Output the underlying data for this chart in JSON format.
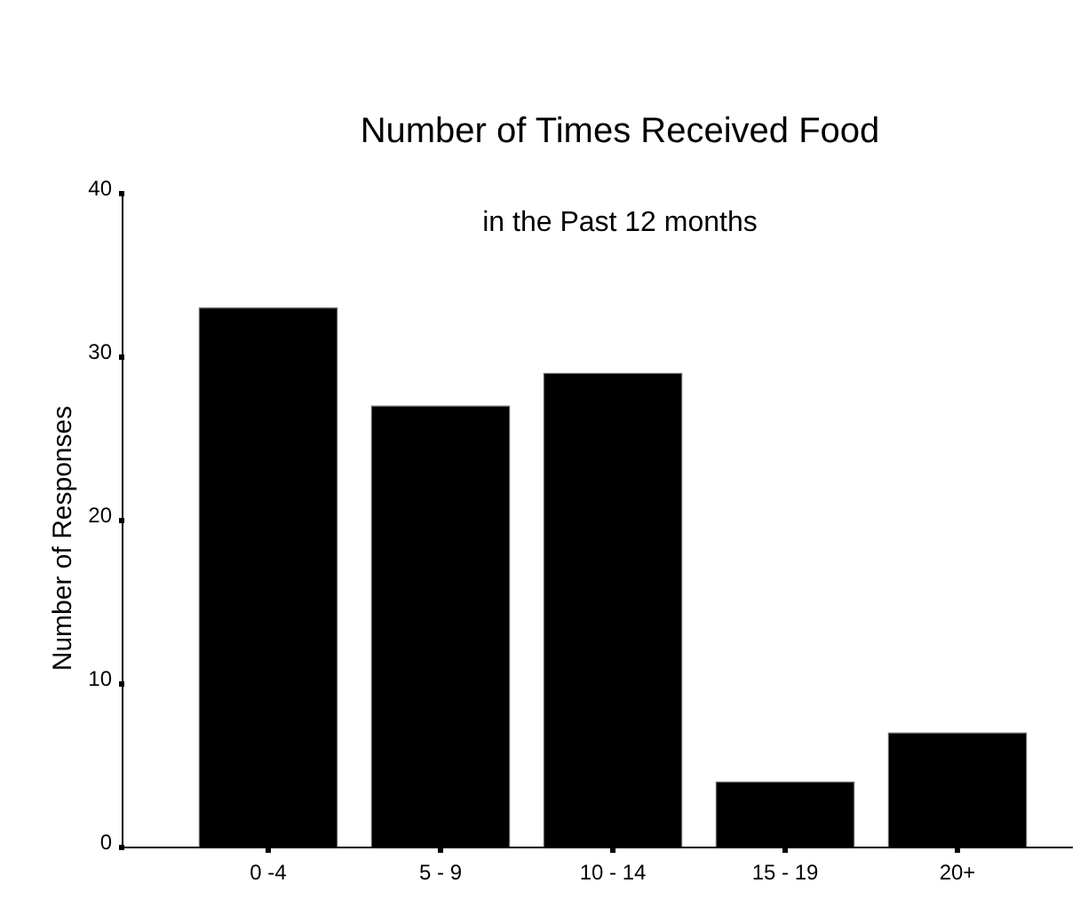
{
  "chart_data": {
    "type": "bar",
    "title": "Number of Times Received Food",
    "subtitle": "in the Past 12 months",
    "ylabel": "Number of Responses",
    "categories": [
      "0 -4",
      "5 - 9",
      "10 - 14",
      "15 - 19",
      "20+"
    ],
    "values": [
      33,
      27,
      29,
      4,
      7
    ],
    "color": "#000000",
    "ylim": [
      0,
      40
    ],
    "yticks": [
      0,
      10,
      20,
      30,
      40
    ],
    "grid": false
  }
}
